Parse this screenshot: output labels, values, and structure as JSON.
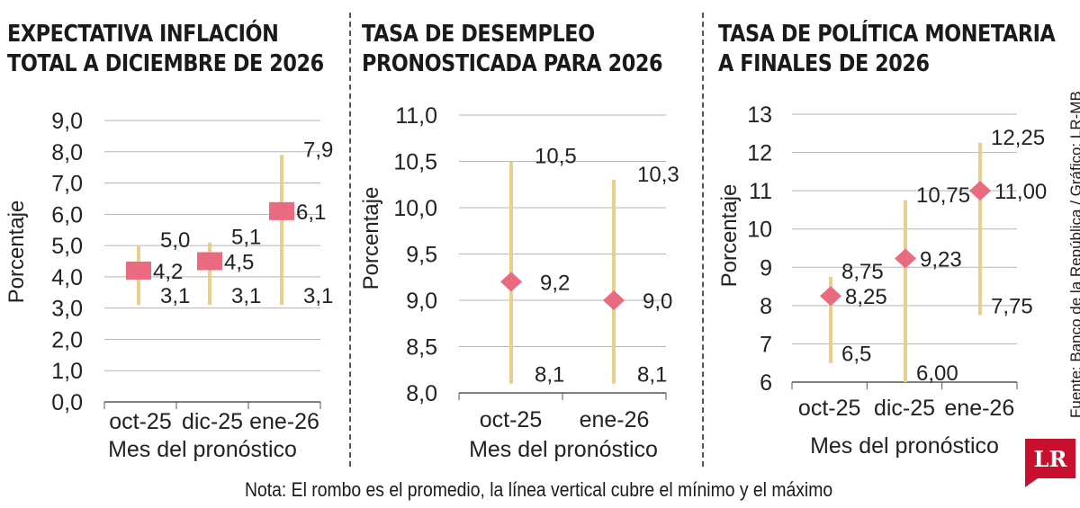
{
  "chart_data": [
    {
      "type": "range",
      "title_lines": [
        "EXPECTATIVA INFLACIÓN",
        "TOTAL A DICIEMBRE DE 2026"
      ],
      "ylabel": "Porcentaje",
      "xlabel": "Mes del pronóstico",
      "categories": [
        "oct-25",
        "dic-25",
        "ene-26"
      ],
      "yticks": [
        "0,0",
        "1,0",
        "2,0",
        "3,0",
        "4,0",
        "5,0",
        "6,0",
        "7,0",
        "8,0",
        "9,0"
      ],
      "ylim": [
        0,
        9
      ],
      "marker": "square",
      "mean": [
        4.2,
        4.5,
        6.1
      ],
      "min": [
        3.1,
        3.1,
        3.1
      ],
      "max": [
        5.0,
        5.1,
        7.9
      ],
      "mean_labels": [
        "4,2",
        "4,5",
        "6,1"
      ],
      "min_labels": [
        "3,1",
        "3,1",
        "3,1"
      ],
      "max_labels": [
        "5,0",
        "5,1",
        "7,9"
      ]
    },
    {
      "type": "range",
      "title_lines": [
        "TASA DE DESEMPLEO",
        "PRONOSTICADA PARA 2026"
      ],
      "ylabel": "Porcentaje",
      "xlabel": "Mes del pronóstico",
      "categories": [
        "oct-25",
        "ene-26"
      ],
      "yticks": [
        "8,0",
        "8,5",
        "9,0",
        "9,5",
        "10,0",
        "10,5",
        "11,0"
      ],
      "ylim": [
        8,
        11
      ],
      "marker": "diamond",
      "mean": [
        9.2,
        9.0
      ],
      "min": [
        8.1,
        8.1
      ],
      "max": [
        10.5,
        10.3
      ],
      "mean_labels": [
        "9,2",
        "9,0"
      ],
      "min_labels": [
        "8,1",
        "8,1"
      ],
      "max_labels": [
        "10,5",
        "10,3"
      ]
    },
    {
      "type": "range",
      "title_lines": [
        "TASA DE POLÍTICA MONETARIA",
        "A FINALES DE 2026"
      ],
      "ylabel": "Porcentaje",
      "xlabel": "Mes del pronóstico",
      "categories": [
        "oct-25",
        "dic-25",
        "ene-26"
      ],
      "yticks": [
        "6",
        "7",
        "8",
        "9",
        "10",
        "11",
        "12",
        "13"
      ],
      "ylim": [
        6,
        13
      ],
      "marker": "diamond",
      "mean": [
        8.25,
        9.23,
        11.0
      ],
      "min": [
        6.5,
        6.0,
        7.75
      ],
      "max": [
        8.75,
        10.75,
        12.25
      ],
      "mean_labels": [
        "8,25",
        "9,23",
        "11,00"
      ],
      "min_labels": [
        "6,5",
        "6,00",
        "7,75"
      ],
      "max_labels": [
        "8,75",
        "10,75",
        "12,25"
      ]
    }
  ],
  "colors": {
    "range_line": "#e8cf8e",
    "marker": "#ea6a7f",
    "grid": "#b5b5b5",
    "axis": "#555555"
  },
  "note": "Nota: El rombo es el promedio, la línea vertical cubre el mínimo y el máximo",
  "source": "Fuente: Banco de la República / Gráfico: LR-MB",
  "logo": "LR"
}
